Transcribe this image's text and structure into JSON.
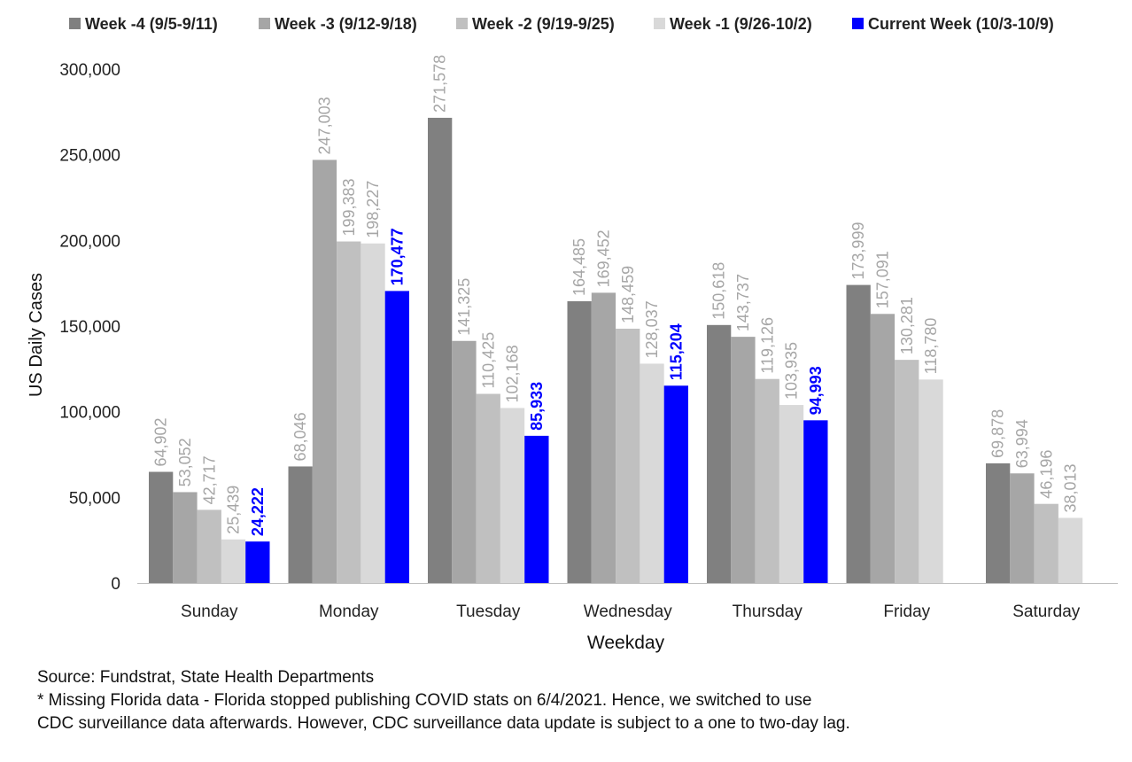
{
  "chart_data": {
    "type": "bar",
    "title": "",
    "xlabel": "Weekday",
    "ylabel": "US Daily Cases",
    "ylim": [
      0,
      300000
    ],
    "yticks": [
      0,
      50000,
      100000,
      150000,
      200000,
      250000,
      300000
    ],
    "ytick_labels": [
      "0",
      "50,000",
      "100,000",
      "150,000",
      "200,000",
      "250,000",
      "300,000"
    ],
    "legend_position": "top",
    "grid": false,
    "categories": [
      "Sunday",
      "Monday",
      "Tuesday",
      "Wednesday",
      "Thursday",
      "Friday",
      "Saturday"
    ],
    "series": [
      {
        "name": "Week -4 (9/5-9/11)",
        "color": "#808080",
        "label_color": "#a6a6a6",
        "label_bold": false,
        "values": [
          64902,
          68046,
          271578,
          164485,
          150618,
          173999,
          69878
        ],
        "labels": [
          "64,902",
          "68,046",
          "271,578",
          "164,485",
          "150,618",
          "173,999",
          "69,878"
        ]
      },
      {
        "name": "Week -3 (9/12-9/18)",
        "color": "#a6a6a6",
        "label_color": "#a6a6a6",
        "label_bold": false,
        "values": [
          53052,
          247003,
          141325,
          169452,
          143737,
          157091,
          63994
        ],
        "labels": [
          "53,052",
          "247,003",
          "141,325",
          "169,452",
          "143,737",
          "157,091",
          "63,994"
        ]
      },
      {
        "name": "Week -2 (9/19-9/25)",
        "color": "#c0c0c0",
        "label_color": "#a6a6a6",
        "label_bold": false,
        "values": [
          42717,
          199383,
          110425,
          148459,
          119126,
          130281,
          46196
        ],
        "labels": [
          "42,717",
          "199,383",
          "110,425",
          "148,459",
          "119,126",
          "130,281",
          "46,196"
        ]
      },
      {
        "name": "Week -1 (9/26-10/2)",
        "color": "#d9d9d9",
        "label_color": "#a6a6a6",
        "label_bold": false,
        "values": [
          25439,
          198227,
          102168,
          128037,
          103935,
          118780,
          38013
        ],
        "labels": [
          "25,439",
          "198,227",
          "102,168",
          "128,037",
          "103,935",
          "118,780",
          "38,013"
        ]
      },
      {
        "name": "Current Week (10/3-10/9)",
        "color": "#0000ff",
        "label_color": "#0000ff",
        "label_bold": true,
        "values": [
          24222,
          170477,
          85933,
          115204,
          94993,
          null,
          null
        ],
        "labels": [
          "24,222",
          "170,477",
          "85,933",
          "115,204",
          "94,993",
          null,
          null
        ]
      }
    ]
  },
  "notes": {
    "source": "Source: Fundstrat, State Health Departments",
    "line1": "* Missing Florida data - Florida stopped publishing COVID stats on 6/4/2021. Hence, we switched to use",
    "line2": "CDC surveillance data afterwards. However, CDC surveillance data update is subject to a one to two-day lag."
  }
}
